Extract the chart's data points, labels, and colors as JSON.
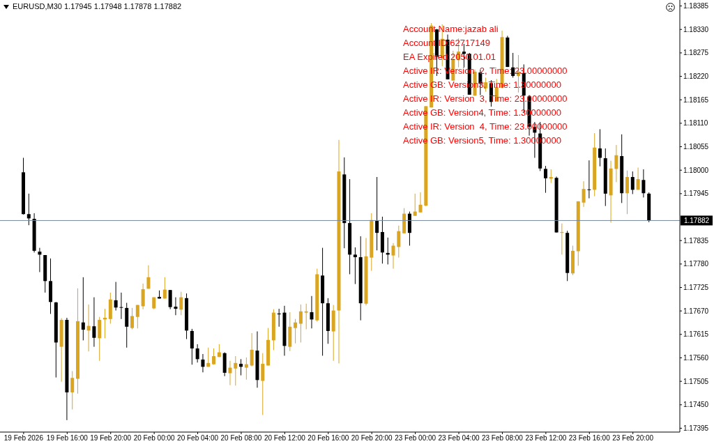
{
  "chart_data": {
    "type": "candlestick",
    "title": "EURUSD,M30 1.17945 1.17948 1.17878 1.17882",
    "categories": [
      "19 Feb 2026",
      null,
      null,
      null,
      null,
      null,
      null,
      null,
      "19 Feb 16:00",
      null,
      null,
      null,
      null,
      null,
      null,
      null,
      "19 Feb 20:00",
      null,
      null,
      null,
      null,
      null,
      null,
      null,
      "20 Feb 00:00",
      null,
      null,
      null,
      null,
      null,
      null,
      null,
      "20 Feb 04:00",
      null,
      null,
      null,
      null,
      null,
      null,
      null,
      "20 Feb 08:00",
      null,
      null,
      null,
      null,
      null,
      null,
      null,
      "20 Feb 12:00",
      null,
      null,
      null,
      null,
      null,
      null,
      null,
      "20 Feb 16:00",
      null,
      null,
      null,
      null,
      null,
      null,
      null,
      "20 Feb 20:00",
      null,
      null,
      null,
      null,
      null,
      null,
      null,
      "23 Feb 00:00",
      null,
      null,
      null,
      null,
      null,
      null,
      null,
      "23 Feb 04:00",
      null,
      null,
      null,
      null,
      null,
      null,
      null,
      "23 Feb 08:00",
      null,
      null,
      null,
      null,
      null,
      null,
      null,
      "23 Feb 12:00",
      null,
      null,
      null,
      null,
      null,
      null,
      null,
      "23 Feb 16:00",
      null,
      null,
      null,
      null,
      null,
      null,
      null,
      "23 Feb 20:00",
      null,
      null,
      null
    ],
    "ohlc": [
      [
        1.17995,
        1.18029,
        1.17896,
        1.17897
      ],
      [
        1.17897,
        1.17945,
        1.17871,
        1.17887
      ],
      [
        1.17886,
        1.17899,
        1.17807,
        1.17811
      ],
      [
        1.17809,
        1.17818,
        1.17761,
        1.17802
      ],
      [
        1.17801,
        1.17801,
        1.17713,
        1.1774
      ],
      [
        1.1774,
        1.17793,
        1.17663,
        1.17691
      ],
      [
        1.1769,
        1.17691,
        1.17514,
        1.17596
      ],
      [
        1.17586,
        1.17653,
        1.17504,
        1.17649
      ],
      [
        1.17649,
        1.17654,
        1.17414,
        1.17479
      ],
      [
        1.17479,
        1.17529,
        1.17439,
        1.17513
      ],
      [
        1.17511,
        1.17723,
        1.17476,
        1.17646
      ],
      [
        1.17643,
        1.17749,
        1.17601,
        1.17626
      ],
      [
        1.17624,
        1.17685,
        1.17575,
        1.17635
      ],
      [
        1.17634,
        1.17702,
        1.17586,
        1.17607
      ],
      [
        1.17606,
        1.17656,
        1.17553,
        1.17649
      ],
      [
        1.1765,
        1.17675,
        1.17606,
        1.17654
      ],
      [
        1.17651,
        1.17713,
        1.1764,
        1.17697
      ],
      [
        1.17695,
        1.17738,
        1.17671,
        1.17678
      ],
      [
        1.17679,
        1.17713,
        1.17651,
        1.17678
      ],
      [
        1.17677,
        1.17689,
        1.17584,
        1.17633
      ],
      [
        1.1763,
        1.17677,
        1.17627,
        1.17658
      ],
      [
        1.17656,
        1.17684,
        1.17629,
        1.17684
      ],
      [
        1.17681,
        1.17734,
        1.17674,
        1.17721
      ],
      [
        1.17722,
        1.17777,
        1.17722,
        1.17749
      ],
      [
        1.17676,
        1.17702,
        1.17674,
        1.17702
      ],
      [
        1.17703,
        1.17718,
        1.17699,
        1.17699
      ],
      [
        1.17699,
        1.17749,
        1.17699,
        1.1772
      ],
      [
        1.17719,
        1.17719,
        1.17674,
        1.17679
      ],
      [
        1.1768,
        1.17702,
        1.1766,
        1.17675
      ],
      [
        1.17673,
        1.17715,
        1.1766,
        1.17702
      ],
      [
        1.177,
        1.17711,
        1.17604,
        1.17624
      ],
      [
        1.17623,
        1.17628,
        1.17544,
        1.17582
      ],
      [
        1.17582,
        1.17592,
        1.17549,
        1.17557
      ],
      [
        1.17556,
        1.17569,
        1.17526,
        1.17539
      ],
      [
        1.17539,
        1.17584,
        1.17539,
        1.17548
      ],
      [
        1.17545,
        1.17582,
        1.17544,
        1.17564
      ],
      [
        1.17562,
        1.17592,
        1.17562,
        1.17573
      ],
      [
        1.17571,
        1.17573,
        1.17517,
        1.17525
      ],
      [
        1.17524,
        1.17553,
        1.17496,
        1.17537
      ],
      [
        1.17535,
        1.17564,
        1.17495,
        1.17548
      ],
      [
        1.17546,
        1.17557,
        1.17519,
        1.17539
      ],
      [
        1.17537,
        1.17561,
        1.17509,
        1.17545
      ],
      [
        1.17542,
        1.17618,
        1.1754,
        1.17579
      ],
      [
        1.17577,
        1.17622,
        1.1749,
        1.17508
      ],
      [
        1.17506,
        1.17571,
        1.17426,
        1.17546
      ],
      [
        1.17542,
        1.1763,
        1.17542,
        1.17602
      ],
      [
        1.17601,
        1.17674,
        1.17578,
        1.17666
      ],
      [
        1.17664,
        1.17675,
        1.17633,
        1.17662
      ],
      [
        1.17666,
        1.17682,
        1.17565,
        1.17588
      ],
      [
        1.17586,
        1.17667,
        1.17576,
        1.17633
      ],
      [
        1.1763,
        1.17651,
        1.17594,
        1.17643
      ],
      [
        1.1764,
        1.17685,
        1.17596,
        1.17669
      ],
      [
        1.17666,
        1.17687,
        1.17627,
        1.17669
      ],
      [
        1.17667,
        1.17705,
        1.17629,
        1.1765
      ],
      [
        1.17648,
        1.17769,
        1.17645,
        1.17756
      ],
      [
        1.17753,
        1.17818,
        1.17565,
        1.17688
      ],
      [
        1.17688,
        1.177,
        1.17593,
        1.17623
      ],
      [
        1.17622,
        1.17684,
        1.17553,
        1.17671
      ],
      [
        1.17671,
        1.18071,
        1.17547,
        1.17997
      ],
      [
        1.1799,
        1.1803,
        1.17817,
        1.17876
      ],
      [
        1.17876,
        1.17979,
        1.17756,
        1.17802
      ],
      [
        1.17802,
        1.17819,
        1.17733,
        1.17796
      ],
      [
        1.17796,
        1.17845,
        1.17648,
        1.17688
      ],
      [
        1.17687,
        1.17841,
        1.17683,
        1.17798
      ],
      [
        1.17795,
        1.17899,
        1.17764,
        1.17883
      ],
      [
        1.17881,
        1.17984,
        1.17812,
        1.17853
      ],
      [
        1.17855,
        1.17891,
        1.17781,
        1.17807
      ],
      [
        1.17806,
        1.17842,
        1.17779,
        1.17802
      ],
      [
        1.178,
        1.17829,
        1.17769,
        1.17823
      ],
      [
        1.1782,
        1.1787,
        1.17795,
        1.17857
      ],
      [
        1.17852,
        1.17911,
        1.17852,
        1.17898
      ],
      [
        1.17898,
        1.17903,
        1.17823,
        1.17853
      ],
      [
        1.17893,
        1.17945,
        1.17893,
        1.17903
      ],
      [
        1.17901,
        1.17948,
        1.17901,
        1.17919
      ],
      [
        1.17917,
        1.1815,
        1.17915,
        1.1815
      ],
      [
        1.18147,
        1.18345,
        1.18147,
        1.18339
      ],
      [
        1.1833,
        1.18331,
        1.18221,
        1.18266
      ],
      [
        1.18263,
        1.18342,
        1.18244,
        1.18308
      ],
      [
        1.18306,
        1.18318,
        1.18213,
        1.18213
      ],
      [
        1.1821,
        1.1828,
        1.1821,
        1.1826
      ],
      [
        1.18258,
        1.18309,
        1.18241,
        1.18278
      ],
      [
        1.18278,
        1.18296,
        1.18241,
        1.18273
      ],
      [
        1.18273,
        1.18275,
        1.18177,
        1.18177
      ],
      [
        1.18175,
        1.18236,
        1.18174,
        1.18231
      ],
      [
        1.18229,
        1.18236,
        1.18176,
        1.18203
      ],
      [
        1.18192,
        1.18217,
        1.18184,
        1.18206
      ],
      [
        1.18204,
        1.18211,
        1.18149,
        1.1816
      ],
      [
        1.18162,
        1.18214,
        1.18161,
        1.18195
      ],
      [
        1.18193,
        1.18327,
        1.18192,
        1.18312
      ],
      [
        1.18311,
        1.18315,
        1.18242,
        1.18242
      ],
      [
        1.18241,
        1.18275,
        1.18217,
        1.18221
      ],
      [
        1.18221,
        1.1827,
        1.18182,
        1.18231
      ],
      [
        1.18228,
        1.18248,
        1.18135,
        1.18175
      ],
      [
        1.18173,
        1.18176,
        1.18081,
        1.18102
      ],
      [
        1.18101,
        1.18113,
        1.18029,
        1.18088
      ],
      [
        1.18086,
        1.18113,
        1.17998,
        1.18004
      ],
      [
        1.18003,
        1.1801,
        1.17947,
        1.17981
      ],
      [
        1.1798,
        1.18002,
        1.1797,
        1.17984
      ],
      [
        1.17982,
        1.17985,
        1.17854,
        1.17854
      ],
      [
        1.17853,
        1.17875,
        1.17802,
        1.17855
      ],
      [
        1.17853,
        1.17858,
        1.1774,
        1.17759
      ],
      [
        1.17758,
        1.17823,
        1.17754,
        1.17811
      ],
      [
        1.1781,
        1.17927,
        1.17776,
        1.17927
      ],
      [
        1.17924,
        1.17974,
        1.17914,
        1.17956
      ],
      [
        1.17955,
        1.18023,
        1.17934,
        1.17954
      ],
      [
        1.17954,
        1.18087,
        1.17939,
        1.18053
      ],
      [
        1.18051,
        1.18096,
        1.18009,
        1.18029
      ],
      [
        1.18028,
        1.18051,
        1.17916,
        1.17945
      ],
      [
        1.17941,
        1.18022,
        1.17877,
        1.18004
      ],
      [
        1.18003,
        1.18059,
        1.17972,
        1.18035
      ],
      [
        1.18033,
        1.18084,
        1.17923,
        1.17946
      ],
      [
        1.17946,
        1.17999,
        1.17897,
        1.17984
      ],
      [
        1.17984,
        1.17997,
        1.17944,
        1.17954
      ],
      [
        1.17954,
        1.18006,
        1.17954,
        1.17979
      ],
      [
        1.17977,
        1.18002,
        1.17936,
        1.17946
      ],
      [
        1.17945,
        1.17948,
        1.17878,
        1.17882
      ]
    ],
    "colors": [
      "#000000",
      "#000000",
      "#000000",
      "#000000",
      "#000000",
      "#000000",
      "#000000",
      "#daa520",
      "#000000",
      "#daa520",
      "#daa520",
      "#000000",
      "#daa520",
      "#000000",
      "#daa520",
      "#daa520",
      "#daa520",
      "#000000",
      "#000000",
      "#000000",
      "#daa520",
      "#daa520",
      "#daa520",
      "#daa520",
      "#daa520",
      "#000000",
      "#daa520",
      "#000000",
      "#000000",
      "#daa520",
      "#000000",
      "#000000",
      "#000000",
      "#000000",
      "#daa520",
      "#daa520",
      "#daa520",
      "#000000",
      "#daa520",
      "#daa520",
      "#000000",
      "#daa520",
      "#daa520",
      "#000000",
      "#daa520",
      "#daa520",
      "#daa520",
      "#000000",
      "#000000",
      "#daa520",
      "#daa520",
      "#daa520",
      "#daa520",
      "#000000",
      "#daa520",
      "#000000",
      "#000000",
      "#daa520",
      "#daa520",
      "#000000",
      "#000000",
      "#000000",
      "#000000",
      "#daa520",
      "#daa520",
      "#000000",
      "#000000",
      "#000000",
      "#daa520",
      "#daa520",
      "#daa520",
      "#000000",
      "#daa520",
      "#daa520",
      "#daa520",
      "#daa520",
      "#000000",
      "#daa520",
      "#000000",
      "#daa520",
      "#daa520",
      "#000000",
      "#000000",
      "#daa520",
      "#000000",
      "#daa520",
      "#000000",
      "#daa520",
      "#daa520",
      "#000000",
      "#000000",
      "#daa520",
      "#000000",
      "#000000",
      "#000000",
      "#000000",
      "#000000",
      "#daa520",
      "#000000",
      "#daa520",
      "#000000",
      "#daa520",
      "#daa520",
      "#daa520",
      "#000000",
      "#daa520",
      "#000000",
      "#000000",
      "#daa520",
      "#daa520",
      "#000000",
      "#daa520",
      "#000000",
      "#daa520",
      "#000000",
      "#000000"
    ],
    "ylim": [
      1.17386,
      1.18399
    ],
    "yticks": [
      1.17395,
      {
        "value": 1.1745,
        "label": "1.17450"
      },
      1.17505,
      {
        "value": 1.1756,
        "label": "1.17560"
      },
      1.17615,
      {
        "value": 1.1767,
        "label": "1.17670"
      },
      1.17725,
      {
        "value": 1.1778,
        "label": "1.17780"
      },
      1.17835,
      1.17945,
      {
        "value": 1.18,
        "label": "1.18000"
      },
      1.18055,
      {
        "value": 1.1811,
        "label": "1.18110"
      },
      1.18165,
      {
        "value": 1.1822,
        "label": "1.18220"
      },
      1.18275,
      {
        "value": 1.1833,
        "label": "1.18330"
      },
      1.18385
    ],
    "ref_lines": [
      {
        "axis": "y",
        "value": 1.17882,
        "label": "1.17882",
        "color": "#778899"
      }
    ],
    "annotations": [
      "Account Name:jazab ali",
      "Account ID:62717149",
      "EA Expired:2050.01.01",
      "Active IR: Version  2, Time: 23.00000000",
      "Active GB: Version3, Time: 1.30000000",
      "Active IR: Version  3, Time: 23.00000000",
      "Active GB: Version4, Time: 1.30000000",
      "Active IR: Version  4, Time: 23.00000000",
      "Active GB: Version5, Time: 1.30000000"
    ]
  }
}
